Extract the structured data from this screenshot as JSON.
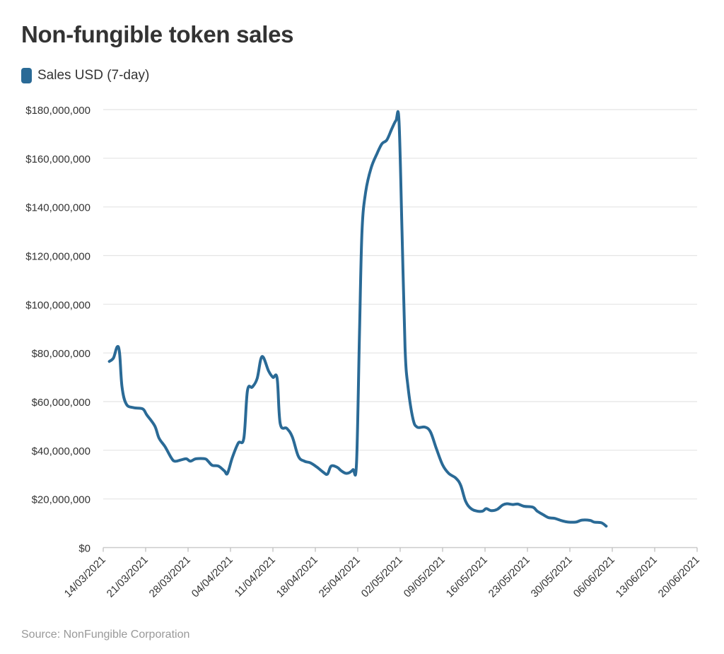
{
  "title": "Non-fungible token sales",
  "legend": {
    "label": "Sales USD (7-day)",
    "color": "#2a6a96"
  },
  "source": "Source: NonFungible Corporation",
  "chart_data": {
    "type": "line",
    "title": "Non-fungible token sales",
    "xlabel": "",
    "ylabel": "",
    "ylim": [
      0,
      180000000
    ],
    "yticks": [
      0,
      20000000,
      40000000,
      60000000,
      80000000,
      100000000,
      120000000,
      140000000,
      160000000,
      180000000
    ],
    "ytick_labels": [
      "$0",
      "$20,000,000",
      "$40,000,000",
      "$60,000,000",
      "$80,000,000",
      "$100,000,000",
      "$120,000,000",
      "$140,000,000",
      "$160,000,000",
      "$180,000,000"
    ],
    "xlim_days": [
      0,
      98
    ],
    "xtick_days": [
      0,
      7,
      14,
      21,
      28,
      35,
      42,
      49,
      56,
      63,
      70,
      77,
      84,
      91,
      98
    ],
    "xtick_labels": [
      "14/03/2021",
      "21/03/2021",
      "28/03/2021",
      "04/04/2021",
      "11/04/2021",
      "18/04/2021",
      "25/04/2021",
      "02/05/2021",
      "09/05/2021",
      "16/05/2021",
      "23/05/2021",
      "30/05/2021",
      "06/06/2021",
      "13/06/2021",
      "20/06/2021"
    ],
    "grid": true,
    "legend_position": "top-left",
    "series": [
      {
        "name": "Sales USD (7-day)",
        "color": "#2a6a96",
        "points": [
          [
            1,
            76500000
          ],
          [
            1.7,
            78000000
          ],
          [
            2.3,
            82500000
          ],
          [
            2.7,
            80000000
          ],
          [
            3.1,
            66000000
          ],
          [
            3.8,
            59000000
          ],
          [
            5,
            57500000
          ],
          [
            6.5,
            57000000
          ],
          [
            7.2,
            54500000
          ],
          [
            8.5,
            50000000
          ],
          [
            9.2,
            45000000
          ],
          [
            10.2,
            41500000
          ],
          [
            11.2,
            37000000
          ],
          [
            11.8,
            35500000
          ],
          [
            12.8,
            36000000
          ],
          [
            13.7,
            36500000
          ],
          [
            14.4,
            35500000
          ],
          [
            15.3,
            36500000
          ],
          [
            16.8,
            36500000
          ],
          [
            17.3,
            35500000
          ],
          [
            18,
            33800000
          ],
          [
            19,
            33500000
          ],
          [
            20,
            31500000
          ],
          [
            20.5,
            30500000
          ],
          [
            21.3,
            37000000
          ],
          [
            22.3,
            43000000
          ],
          [
            23.2,
            45000000
          ],
          [
            23.8,
            64500000
          ],
          [
            24.6,
            66000000
          ],
          [
            25.4,
            69500000
          ],
          [
            26.2,
            78500000
          ],
          [
            27.3,
            72500000
          ],
          [
            28,
            70000000
          ],
          [
            28.7,
            69500000
          ],
          [
            29.2,
            51000000
          ],
          [
            30.3,
            49000000
          ],
          [
            31.2,
            45500000
          ],
          [
            32.2,
            37500000
          ],
          [
            33.2,
            35500000
          ],
          [
            34.2,
            34800000
          ],
          [
            35.3,
            33000000
          ],
          [
            36.3,
            31000000
          ],
          [
            37,
            30200000
          ],
          [
            37.6,
            33500000
          ],
          [
            38.6,
            33000000
          ],
          [
            39.3,
            31500000
          ],
          [
            40.2,
            30500000
          ],
          [
            41.2,
            32000000
          ],
          [
            41.8,
            35000000
          ],
          [
            42.3,
            90000000
          ],
          [
            42.7,
            130000000
          ],
          [
            43.3,
            146000000
          ],
          [
            44.2,
            156000000
          ],
          [
            45.2,
            162000000
          ],
          [
            46,
            166000000
          ],
          [
            46.8,
            167500000
          ],
          [
            47.6,
            172000000
          ],
          [
            48.3,
            175500000
          ],
          [
            48.8,
            175500000
          ],
          [
            49.3,
            130000000
          ],
          [
            49.8,
            82000000
          ],
          [
            50.3,
            66000000
          ],
          [
            51.1,
            53000000
          ],
          [
            51.8,
            49500000
          ],
          [
            53.1,
            49500000
          ],
          [
            54,
            47500000
          ],
          [
            55,
            40500000
          ],
          [
            56,
            34000000
          ],
          [
            57,
            30500000
          ],
          [
            58.2,
            28500000
          ],
          [
            59,
            25500000
          ],
          [
            59.8,
            19000000
          ],
          [
            60.7,
            16000000
          ],
          [
            61.7,
            15000000
          ],
          [
            62.6,
            15000000
          ],
          [
            63.2,
            16000000
          ],
          [
            64,
            15200000
          ],
          [
            65,
            15700000
          ],
          [
            65.9,
            17500000
          ],
          [
            66.6,
            18000000
          ],
          [
            67.6,
            17700000
          ],
          [
            68.4,
            17900000
          ],
          [
            69.4,
            17000000
          ],
          [
            70.9,
            16600000
          ],
          [
            71.6,
            15000000
          ],
          [
            72.6,
            13500000
          ],
          [
            73.5,
            12300000
          ],
          [
            74.5,
            12000000
          ],
          [
            75.7,
            11000000
          ],
          [
            76.7,
            10500000
          ],
          [
            78,
            10500000
          ],
          [
            79,
            11300000
          ],
          [
            80.3,
            11200000
          ],
          [
            81,
            10500000
          ],
          [
            82.2,
            10200000
          ],
          [
            83,
            8800000
          ]
        ]
      }
    ]
  }
}
